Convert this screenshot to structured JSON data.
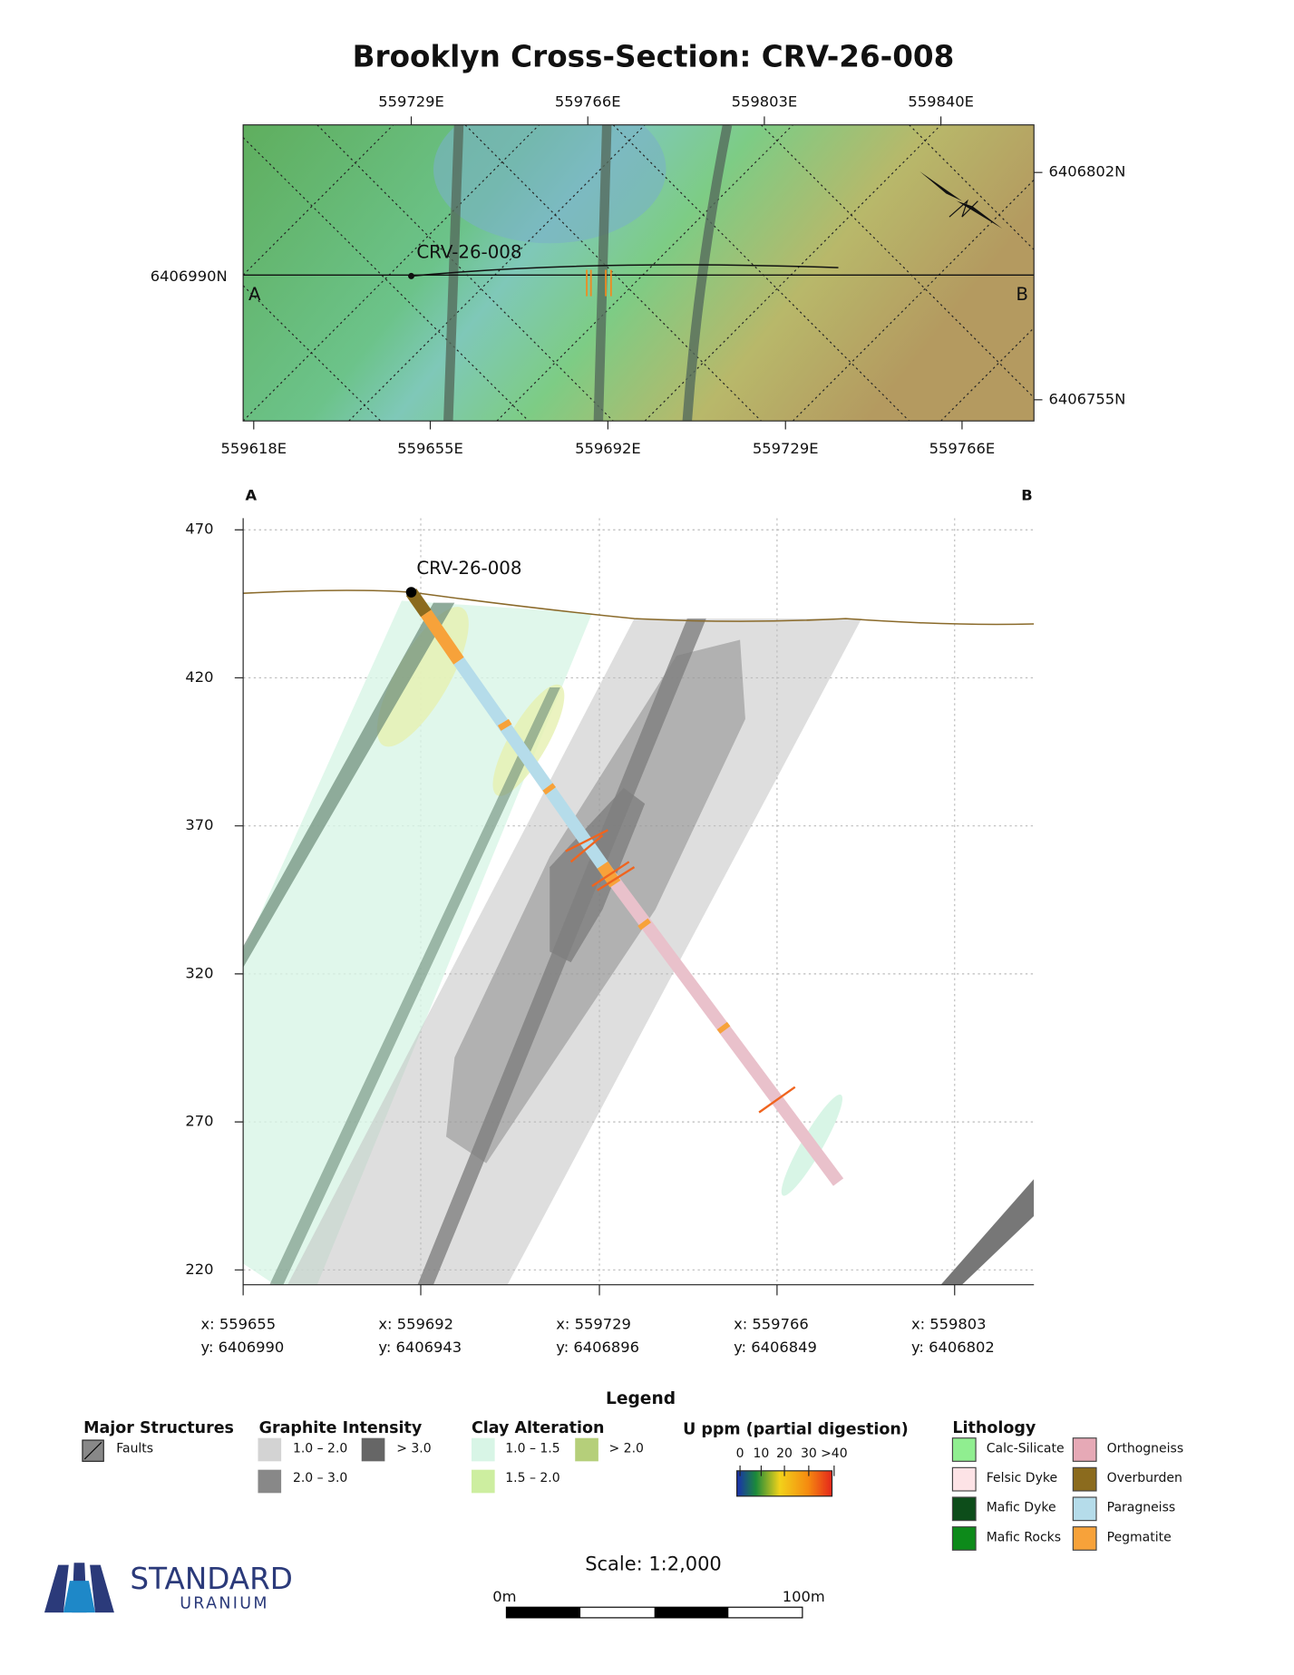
{
  "title": "Brooklyn Cross-Section: CRV-26-008",
  "plan_map": {
    "top_ticks": [
      "559729E",
      "559766E",
      "559803E",
      "559840E"
    ],
    "bottom_ticks": [
      "559618E",
      "559655E",
      "559692E",
      "559729E",
      "559766E"
    ],
    "left_ticks": [
      "6406990N"
    ],
    "right_ticks": [
      "6406802N",
      "6406755N"
    ],
    "hole_label": "CRV-26-008",
    "section_start": "A",
    "section_end": "B"
  },
  "section": {
    "section_start": "A",
    "section_end": "B",
    "hole_label": "CRV-26-008",
    "y_ticks": [
      "470",
      "420",
      "370",
      "320",
      "270",
      "220"
    ],
    "x_ticks": [
      {
        "x": "x: 559655",
        "y": "y: 6406990"
      },
      {
        "x": "x: 559692",
        "y": "y: 6406943"
      },
      {
        "x": "x: 559729",
        "y": "y: 6406896"
      },
      {
        "x": "x: 559766",
        "y": "y: 6406849"
      },
      {
        "x": "x: 559803",
        "y": "y: 6406802"
      }
    ]
  },
  "legend": {
    "title": "Legend",
    "major_structures": {
      "title": "Major Structures",
      "items": [
        "Faults"
      ]
    },
    "graphite": {
      "title": "Graphite Intensity",
      "items": [
        "1.0 – 2.0",
        "> 3.0",
        "2.0 – 3.0"
      ]
    },
    "clay": {
      "title": "Clay Alteration",
      "items": [
        "1.0 – 1.5",
        "> 2.0",
        "1.5 – 2.0"
      ]
    },
    "uranium": {
      "title": "U ppm (partial digestion)",
      "scale_labels": [
        "0",
        "10",
        "20",
        "30",
        ">40"
      ]
    },
    "lithology": {
      "title": "Lithology",
      "items": [
        "Calc-Silicate",
        "Felsic Dyke",
        "Mafic Dyke",
        "Mafic Rocks",
        "Orthogneiss",
        "Overburden",
        "Paragneiss",
        "Pegmatite"
      ]
    }
  },
  "scale": {
    "text": "Scale: 1:2,000",
    "start": "0m",
    "end": "100m"
  },
  "logo": {
    "name": "STANDARD",
    "sub": "URANIUM"
  }
}
